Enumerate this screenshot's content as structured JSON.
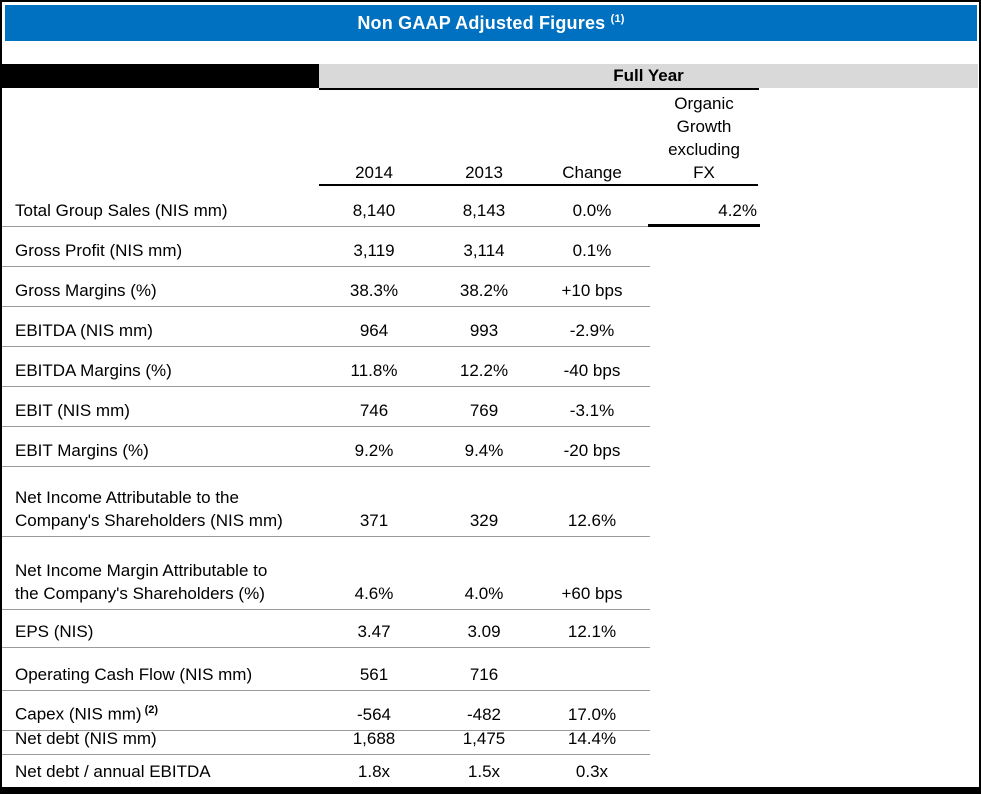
{
  "title": {
    "text": "Non GAAP Adjusted Figures",
    "sup": "(1)"
  },
  "period_header": "Full Year",
  "columns": {
    "y2014": "2014",
    "y2013": "2013",
    "change": "Change",
    "organic_lines": [
      "Organic",
      "Growth",
      "excluding",
      "FX"
    ]
  },
  "colors": {
    "title_bar_blue": "#0070C0",
    "period_bar_gray": "#D9D9D9",
    "black_bar": "#000000",
    "row_line_gray": "#9b9b9b"
  },
  "table": {
    "rows": [
      {
        "label_lines": [
          "Total Group Sales (NIS mm)"
        ],
        "v2014": "8,140",
        "v2013": "8,143",
        "change": "0.0%",
        "organic": "4.2%"
      },
      {
        "label_lines": [
          "Gross Profit (NIS mm)"
        ],
        "v2014": "3,119",
        "v2013": "3,114",
        "change": "0.1%",
        "organic": ""
      },
      {
        "label_lines": [
          "Gross Margins (%)"
        ],
        "v2014": "38.3%",
        "v2013": "38.2%",
        "change": "+10 bps",
        "organic": ""
      },
      {
        "label_lines": [
          "EBITDA (NIS mm)"
        ],
        "v2014": "964",
        "v2013": "993",
        "change": "-2.9%",
        "organic": ""
      },
      {
        "label_lines": [
          "EBITDA Margins (%)"
        ],
        "v2014": "11.8%",
        "v2013": "12.2%",
        "change": "-40 bps",
        "organic": ""
      },
      {
        "label_lines": [
          "EBIT (NIS mm)"
        ],
        "v2014": "746",
        "v2013": "769",
        "change": "-3.1%",
        "organic": ""
      },
      {
        "label_lines": [
          "EBIT Margins (%)"
        ],
        "v2014": "9.2%",
        "v2013": "9.4%",
        "change": "-20 bps",
        "organic": ""
      },
      {
        "label_lines": [
          "Net Income Attributable to the",
          "Company's Shareholders (NIS mm)"
        ],
        "v2014": "371",
        "v2013": "329",
        "change": "12.6%",
        "organic": ""
      },
      {
        "label_lines": [
          "Net Income Margin Attributable to",
          "the Company's Shareholders (%)"
        ],
        "v2014": "4.6%",
        "v2013": "4.0%",
        "change": "+60 bps",
        "organic": ""
      },
      {
        "label_lines": [
          "EPS (NIS)"
        ],
        "v2014": "3.47",
        "v2013": "3.09",
        "change": "12.1%",
        "organic": ""
      },
      {
        "label_lines": [
          "Operating Cash Flow (NIS mm)"
        ],
        "v2014": "561",
        "v2013": "716",
        "change": "",
        "organic": ""
      },
      {
        "label_lines": [
          "Capex (NIS mm)"
        ],
        "label_sup": "(2)",
        "v2014": "-564",
        "v2013": "-482",
        "change": "17.0%",
        "organic": ""
      },
      {
        "label_lines": [
          "Net debt (NIS mm)"
        ],
        "v2014": "1,688",
        "v2013": "1,475",
        "change": "14.4%",
        "organic": ""
      },
      {
        "label_lines": [
          "Net debt / annual EBITDA"
        ],
        "v2014": "1.8x",
        "v2013": "1.5x",
        "change": "0.3x",
        "organic": ""
      }
    ]
  }
}
